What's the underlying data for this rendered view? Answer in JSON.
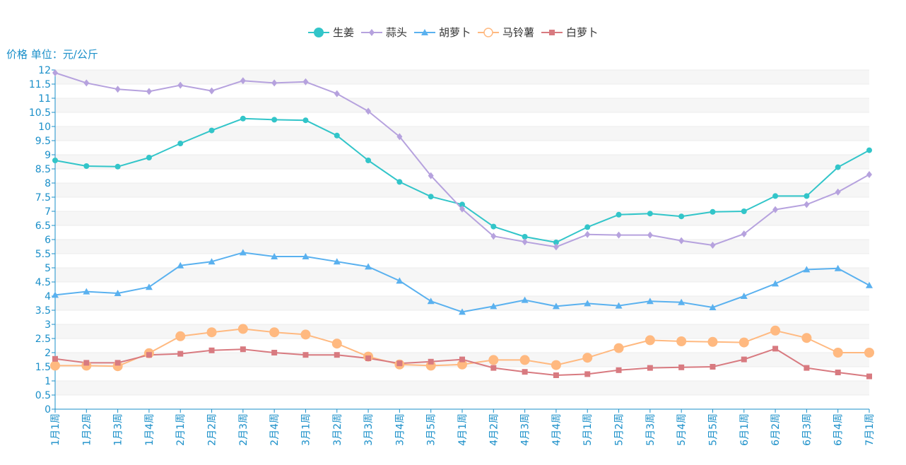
{
  "chart_data": {
    "type": "line",
    "ylabel": "价格 单位：元/公斤",
    "ylim": [
      0,
      12
    ],
    "ytick_step": 0.5,
    "grid": "horizontal bands",
    "legend_position": "top-center",
    "categories": [
      "1月1周",
      "1月2周",
      "1月3周",
      "1月4周",
      "2月1周",
      "2月2周",
      "2月3周",
      "2月4周",
      "3月1周",
      "3月2周",
      "3月3周",
      "3月4周",
      "3月5周",
      "4月1周",
      "4月2周",
      "4月3周",
      "4月4周",
      "5月1周",
      "5月2周",
      "5月3周",
      "5月4周",
      "5月5周",
      "6月1周",
      "6月2周",
      "6月3周",
      "6月4周",
      "7月1周"
    ],
    "series": [
      {
        "name": "生姜",
        "color": "#32c5c9",
        "marker": "circle",
        "values": [
          8.8,
          8.6,
          8.58,
          8.9,
          9.4,
          9.86,
          10.28,
          10.24,
          10.22,
          9.68,
          8.8,
          8.04,
          7.52,
          7.24,
          6.46,
          6.1,
          5.9,
          6.44,
          6.88,
          6.92,
          6.82,
          6.98,
          7.0,
          7.54,
          7.54,
          8.56,
          9.16
        ]
      },
      {
        "name": "蒜头",
        "color": "#b6a2de",
        "marker": "diamond",
        "values": [
          11.9,
          11.54,
          11.32,
          11.24,
          11.46,
          11.26,
          11.62,
          11.54,
          11.58,
          11.16,
          10.54,
          9.64,
          8.26,
          7.08,
          6.12,
          5.92,
          5.74,
          6.18,
          6.16,
          6.16,
          5.96,
          5.8,
          6.2,
          7.06,
          7.24,
          7.68,
          8.3
        ]
      },
      {
        "name": "胡萝卜",
        "color": "#5ab1ef",
        "marker": "triangle",
        "values": [
          4.04,
          4.16,
          4.1,
          4.32,
          5.08,
          5.22,
          5.54,
          5.4,
          5.4,
          5.22,
          5.04,
          4.54,
          3.82,
          3.44,
          3.64,
          3.86,
          3.64,
          3.74,
          3.66,
          3.82,
          3.78,
          3.6,
          4.0,
          4.44,
          4.94,
          4.98,
          4.38
        ]
      },
      {
        "name": "马铃薯",
        "color": "#ffb980",
        "marker": "circle-large",
        "values": [
          1.54,
          1.54,
          1.52,
          1.98,
          2.58,
          2.72,
          2.84,
          2.72,
          2.64,
          2.32,
          1.86,
          1.58,
          1.54,
          1.58,
          1.74,
          1.74,
          1.56,
          1.82,
          2.16,
          2.44,
          2.4,
          2.38,
          2.36,
          2.78,
          2.52,
          2.0,
          2.0
        ]
      },
      {
        "name": "白萝卜",
        "color": "#d87a80",
        "marker": "square",
        "values": [
          1.78,
          1.64,
          1.64,
          1.92,
          1.96,
          2.08,
          2.12,
          2.0,
          1.92,
          1.92,
          1.8,
          1.62,
          1.68,
          1.76,
          1.46,
          1.32,
          1.2,
          1.24,
          1.38,
          1.46,
          1.48,
          1.5,
          1.76,
          2.14,
          1.46,
          1.3,
          1.16
        ]
      }
    ]
  }
}
